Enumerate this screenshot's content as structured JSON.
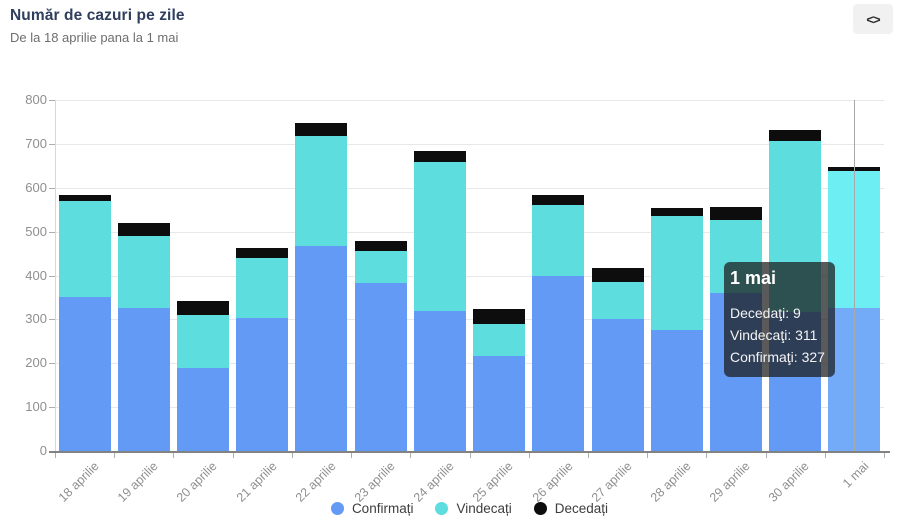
{
  "header": {
    "title": "Număr de cazuri pe zile",
    "subtitle": "De la 18 aprilie pana la 1 mai",
    "embed_button_icon": "<>"
  },
  "chart_data": {
    "type": "bar",
    "stacked": true,
    "title": "Număr de cazuri pe zile",
    "xlabel": "",
    "ylabel": "",
    "ylim": [
      0,
      800
    ],
    "ytick_step": 100,
    "ytick_labels": [
      "0",
      "100",
      "200",
      "300",
      "400",
      "500",
      "600",
      "700",
      "800"
    ],
    "grid": true,
    "legend_position": "bottom",
    "categories": [
      "18 aprilie",
      "19 aprilie",
      "20 aprilie",
      "21 aprilie",
      "22 aprilie",
      "23 aprilie",
      "24 aprilie",
      "25 aprilie",
      "26 aprilie",
      "27 aprilie",
      "28 aprilie",
      "29 aprilie",
      "30 aprilie",
      "1 mai"
    ],
    "series": [
      {
        "name": "Confirmați",
        "color": "#639af5",
        "hover_color": "#73abf9",
        "values": [
          352,
          327,
          190,
          303,
          467,
          384,
          320,
          216,
          398,
          301,
          276,
          359,
          316,
          327
        ]
      },
      {
        "name": "Vindecați",
        "color": "#5ddddd",
        "hover_color": "#6ceef2",
        "values": [
          217,
          162,
          120,
          138,
          252,
          71,
          338,
          74,
          163,
          85,
          260,
          167,
          390,
          311
        ]
      },
      {
        "name": "Decedați",
        "color": "#0d0d0d",
        "hover_color": "#0d0d0d",
        "values": [
          14,
          30,
          32,
          21,
          28,
          23,
          25,
          34,
          23,
          30,
          18,
          30,
          25,
          9
        ]
      }
    ],
    "hovered_category": "1 mai"
  },
  "tooltip": {
    "title": "1 mai",
    "lines": [
      "Decedaţi: 9",
      "Vindecaţi: 311",
      "Confirmaţi: 327"
    ]
  }
}
